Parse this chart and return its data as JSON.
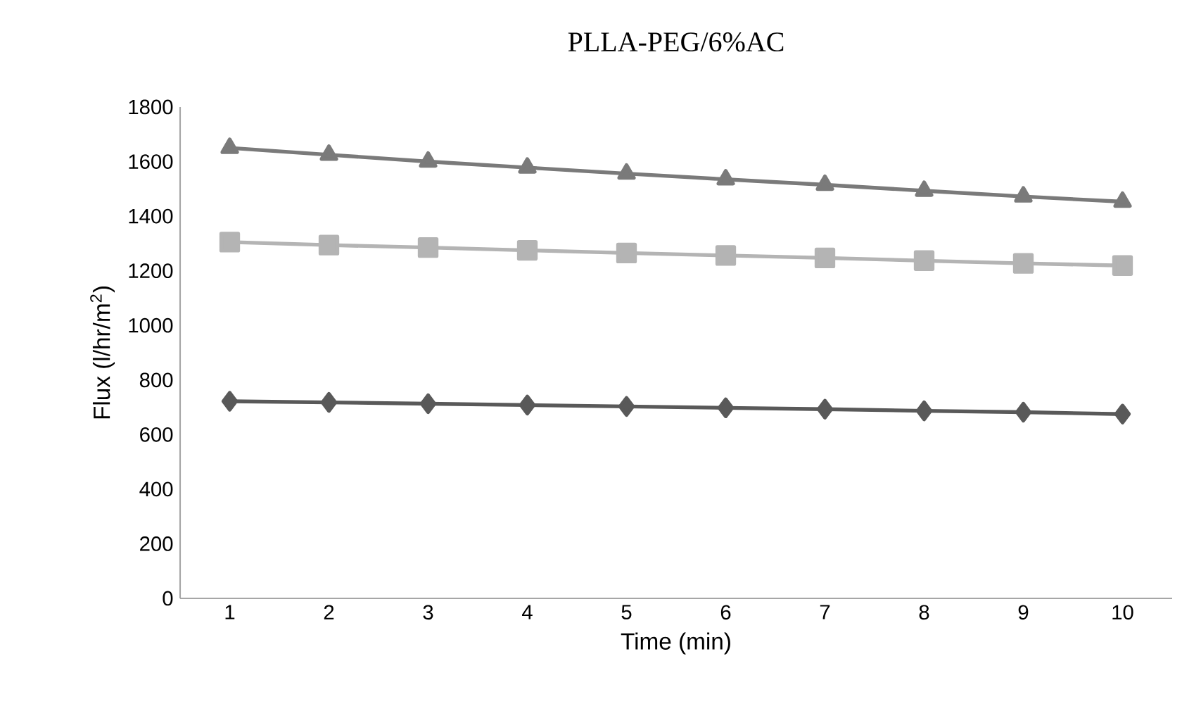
{
  "chart_data": {
    "type": "line",
    "title": "PLLA-PEG/6%AC",
    "xlabel": "Time (min)",
    "ylabel": "Flux (l/hr/m$^{2}$)",
    "categories": [
      "1",
      "2",
      "3",
      "4",
      "5",
      "6",
      "7",
      "8",
      "9",
      "10"
    ],
    "ylim": [
      0,
      1800
    ],
    "yticks": [
      0,
      200,
      400,
      600,
      800,
      1000,
      1200,
      1400,
      1600,
      1800
    ],
    "grid": false,
    "series": [
      {
        "color": "#595959",
        "marker": "diamond",
        "values": [
          722,
          718,
          713,
          708,
          703,
          698,
          693,
          687,
          682,
          675
        ]
      },
      {
        "color": "#b4b4b4",
        "marker": "square",
        "values": [
          1305,
          1294,
          1285,
          1275,
          1265,
          1256,
          1247,
          1237,
          1227,
          1219
        ]
      },
      {
        "color": "#7a7a7a",
        "marker": "triangle",
        "values": [
          1650,
          1625,
          1600,
          1578,
          1556,
          1535,
          1515,
          1493,
          1472,
          1453
        ]
      }
    ]
  }
}
